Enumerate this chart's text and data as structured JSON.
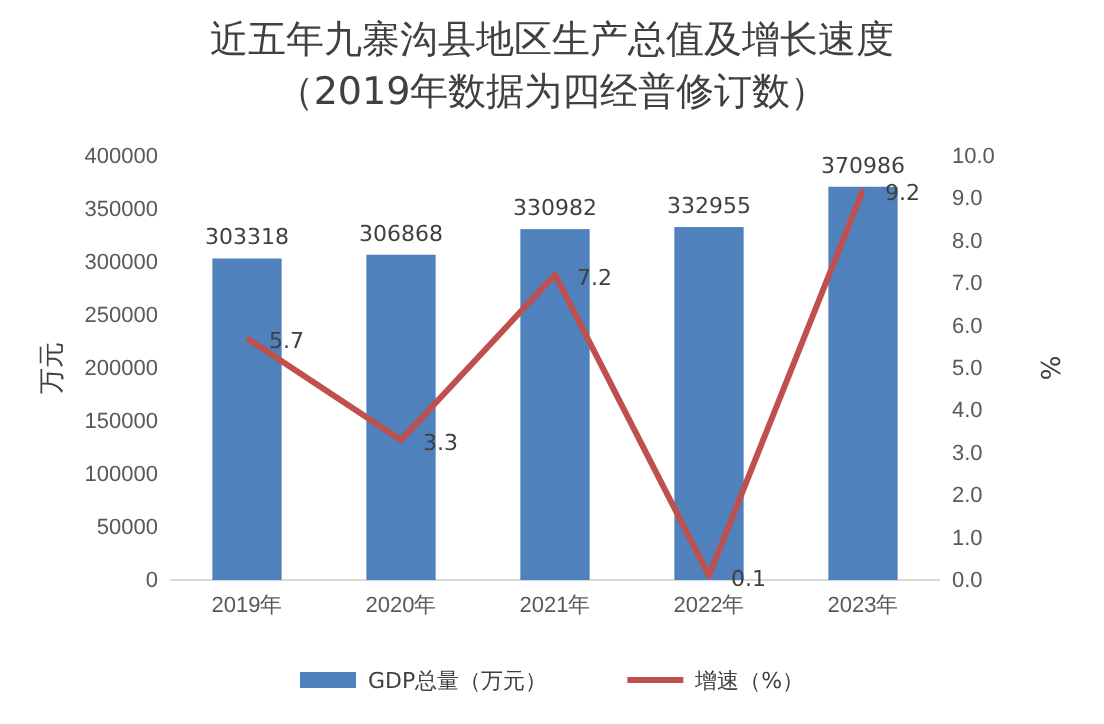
{
  "chart_data": {
    "type": "bar",
    "title": "近五年九寨沟县地区生产总值及增长速度",
    "subtitle": "（2019年数据为四经普修订数）",
    "categories": [
      "2019年",
      "2020年",
      "2021年",
      "2022年",
      "2023年"
    ],
    "series": [
      {
        "name": "GDP总量（万元）",
        "color": "#4f81bd",
        "values": [
          303318,
          306868,
          330982,
          332955,
          370986
        ]
      },
      {
        "name": "增速（%）",
        "type": "line",
        "axis": "y2",
        "color": "#c0504d",
        "values": [
          5.7,
          3.3,
          7.2,
          0.1,
          9.2
        ]
      }
    ],
    "ylabel": "万元",
    "y2label": "%",
    "ylim": [
      0,
      400000
    ],
    "yticks": [
      0,
      50000,
      100000,
      150000,
      200000,
      250000,
      300000,
      350000,
      400000
    ],
    "y2lim": [
      0,
      10
    ],
    "y2ticks": [
      {
        "value": 0,
        "label": "0.0"
      },
      {
        "value": 1,
        "label": "1.0"
      },
      {
        "value": 2,
        "label": "2.0"
      },
      {
        "value": 3,
        "label": "3.0"
      },
      {
        "value": 4,
        "label": "4.0"
      },
      {
        "value": 5,
        "label": "5.0"
      },
      {
        "value": 6,
        "label": "6.0"
      },
      {
        "value": 7,
        "label": "7.0"
      },
      {
        "value": 8,
        "label": "8.0"
      },
      {
        "value": 9,
        "label": "9.0"
      },
      {
        "value": 10,
        "label": "10.0"
      }
    ],
    "data_labels": true,
    "legend": "bottom",
    "marker": "none",
    "line_style": "solid"
  }
}
